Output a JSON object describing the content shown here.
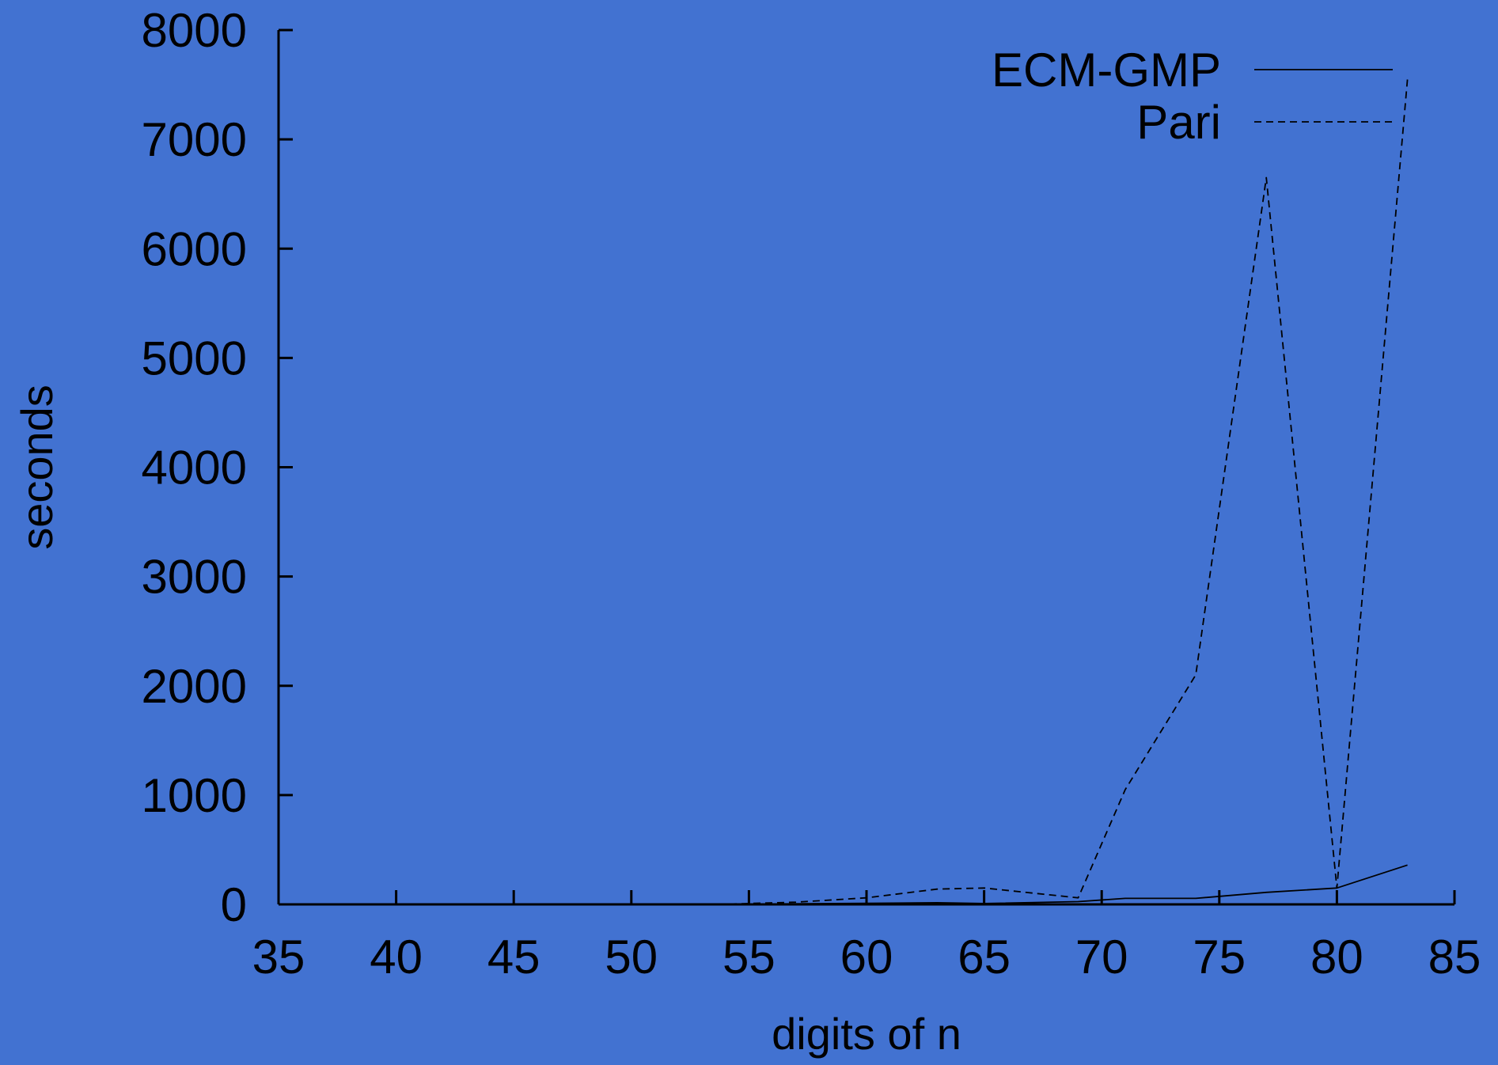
{
  "chart_data": {
    "type": "line",
    "xlabel": "digits of n",
    "ylabel": "seconds",
    "xlim": [
      35,
      85
    ],
    "ylim": [
      0,
      8000
    ],
    "xticks": [
      "35",
      "40",
      "45",
      "50",
      "55",
      "60",
      "65",
      "70",
      "75",
      "80",
      "85"
    ],
    "yticks": [
      "0",
      "1000",
      "2000",
      "3000",
      "4000",
      "5000",
      "6000",
      "7000",
      "8000"
    ],
    "legend_position": "top-right",
    "grid": false,
    "colors": {
      "background": "#4272d1",
      "axis": "#000000",
      "series": "#000000"
    },
    "series": [
      {
        "name": "ECM-GMP",
        "style": "solid",
        "points": [
          [
            35,
            0
          ],
          [
            40,
            0
          ],
          [
            45,
            0
          ],
          [
            50,
            0
          ],
          [
            55,
            2
          ],
          [
            60,
            10
          ],
          [
            63,
            15
          ],
          [
            65,
            8
          ],
          [
            69,
            25
          ],
          [
            71,
            55
          ],
          [
            74,
            55
          ],
          [
            77,
            110
          ],
          [
            80,
            150
          ],
          [
            83,
            360
          ]
        ]
      },
      {
        "name": "Pari",
        "style": "dashed",
        "points": [
          [
            35,
            0
          ],
          [
            40,
            0
          ],
          [
            45,
            0
          ],
          [
            50,
            0
          ],
          [
            54,
            2
          ],
          [
            57,
            20
          ],
          [
            60,
            60
          ],
          [
            63,
            140
          ],
          [
            65,
            150
          ],
          [
            69,
            60
          ],
          [
            71,
            1050
          ],
          [
            74,
            2100
          ],
          [
            77,
            6650
          ],
          [
            80,
            150
          ],
          [
            83,
            7550
          ]
        ]
      }
    ]
  }
}
